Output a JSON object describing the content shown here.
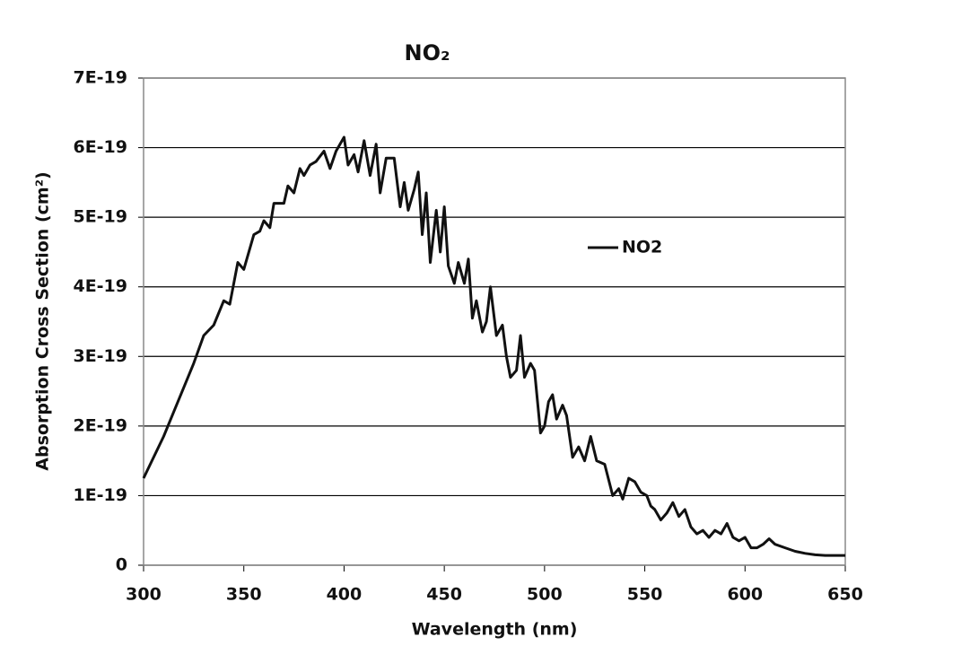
{
  "chart_data": {
    "type": "line",
    "title": "NO₂",
    "xlabel": "Wavelength (nm)",
    "ylabel": "Absorption Cross Section (cm²)",
    "xlim": [
      300,
      650
    ],
    "xticks": [
      300,
      350,
      400,
      450,
      500,
      550,
      600,
      650
    ],
    "ylim": [
      0,
      7e-19
    ],
    "yticks": [
      0,
      {
        "value": 1e-19,
        "label": "1E-19"
      },
      {
        "value": 2e-19,
        "label": "2E-19"
      },
      {
        "value": 3e-19,
        "label": "3E-19"
      },
      {
        "value": 4e-19,
        "label": "4E-19"
      },
      {
        "value": 5e-19,
        "label": "5E-19"
      },
      {
        "value": 6e-19,
        "label": "6E-19"
      },
      {
        "value": 7e-19,
        "label": "7E-19"
      }
    ],
    "grid": true,
    "legend": "right",
    "x": [
      300,
      305,
      310,
      315,
      320,
      325,
      330,
      335,
      340,
      343,
      347,
      350,
      355,
      358,
      360,
      363,
      365,
      370,
      372,
      375,
      378,
      380,
      383,
      386,
      390,
      393,
      396,
      400,
      402,
      405,
      407,
      410,
      413,
      416,
      418,
      421,
      425,
      428,
      430,
      432,
      435,
      437,
      439,
      441,
      443,
      446,
      448,
      450,
      452,
      455,
      457,
      460,
      462,
      464,
      466,
      469,
      471,
      473,
      476,
      479,
      481,
      483,
      486,
      488,
      490,
      493,
      495,
      498,
      500,
      502,
      504,
      506,
      509,
      511,
      514,
      517,
      520,
      523,
      526,
      530,
      534,
      537,
      539,
      542,
      545,
      548,
      551,
      553,
      555,
      558,
      561,
      564,
      567,
      570,
      573,
      576,
      579,
      582,
      585,
      588,
      591,
      594,
      597,
      600,
      603,
      606,
      609,
      612,
      615,
      620,
      625,
      630,
      635,
      640,
      645,
      650
    ],
    "series": [
      {
        "name": "NO2",
        "color": "#111111",
        "values": [
          1.25e-19,
          1.55e-19,
          1.85e-19,
          2.2e-19,
          2.55e-19,
          2.9e-19,
          3.3e-19,
          3.45e-19,
          3.8e-19,
          3.75e-19,
          4.35e-19,
          4.25e-19,
          4.75e-19,
          4.8e-19,
          4.95e-19,
          4.85e-19,
          5.2e-19,
          5.2e-19,
          5.45e-19,
          5.35e-19,
          5.7e-19,
          5.6e-19,
          5.75e-19,
          5.8e-19,
          5.95e-19,
          5.7e-19,
          5.95e-19,
          6.15e-19,
          5.75e-19,
          5.9e-19,
          5.65e-19,
          6.1e-19,
          5.6e-19,
          6.05e-19,
          5.35e-19,
          5.85e-19,
          5.85e-19,
          5.15e-19,
          5.5e-19,
          5.1e-19,
          5.4e-19,
          5.65e-19,
          4.75e-19,
          5.35e-19,
          4.35e-19,
          5.1e-19,
          4.5e-19,
          5.15e-19,
          4.3e-19,
          4.05e-19,
          4.35e-19,
          4.05e-19,
          4.4e-19,
          3.55e-19,
          3.8e-19,
          3.35e-19,
          3.5e-19,
          4e-19,
          3.3e-19,
          3.45e-19,
          3e-19,
          2.7e-19,
          2.8e-19,
          3.3e-19,
          2.7e-19,
          2.9e-19,
          2.8e-19,
          1.9e-19,
          2e-19,
          2.35e-19,
          2.45e-19,
          2.1e-19,
          2.3e-19,
          2.15e-19,
          1.55e-19,
          1.7e-19,
          1.5e-19,
          1.85e-19,
          1.5e-19,
          1.45e-19,
          1e-19,
          1.1e-19,
          9.5e-20,
          1.25e-19,
          1.2e-19,
          1.05e-19,
          1e-19,
          8.5e-20,
          8e-20,
          6.5e-20,
          7.5e-20,
          9e-20,
          7e-20,
          8e-20,
          5.5e-20,
          4.5e-20,
          5e-20,
          4e-20,
          5e-20,
          4.5e-20,
          6e-20,
          4e-20,
          3.5e-20,
          4e-20,
          2.5e-20,
          2.5e-20,
          3e-20,
          3.8e-20,
          3e-20,
          2.5e-20,
          2e-20,
          1.7e-20,
          1.5e-20,
          1.4e-20,
          1.4e-20,
          1.4e-20
        ]
      }
    ]
  }
}
